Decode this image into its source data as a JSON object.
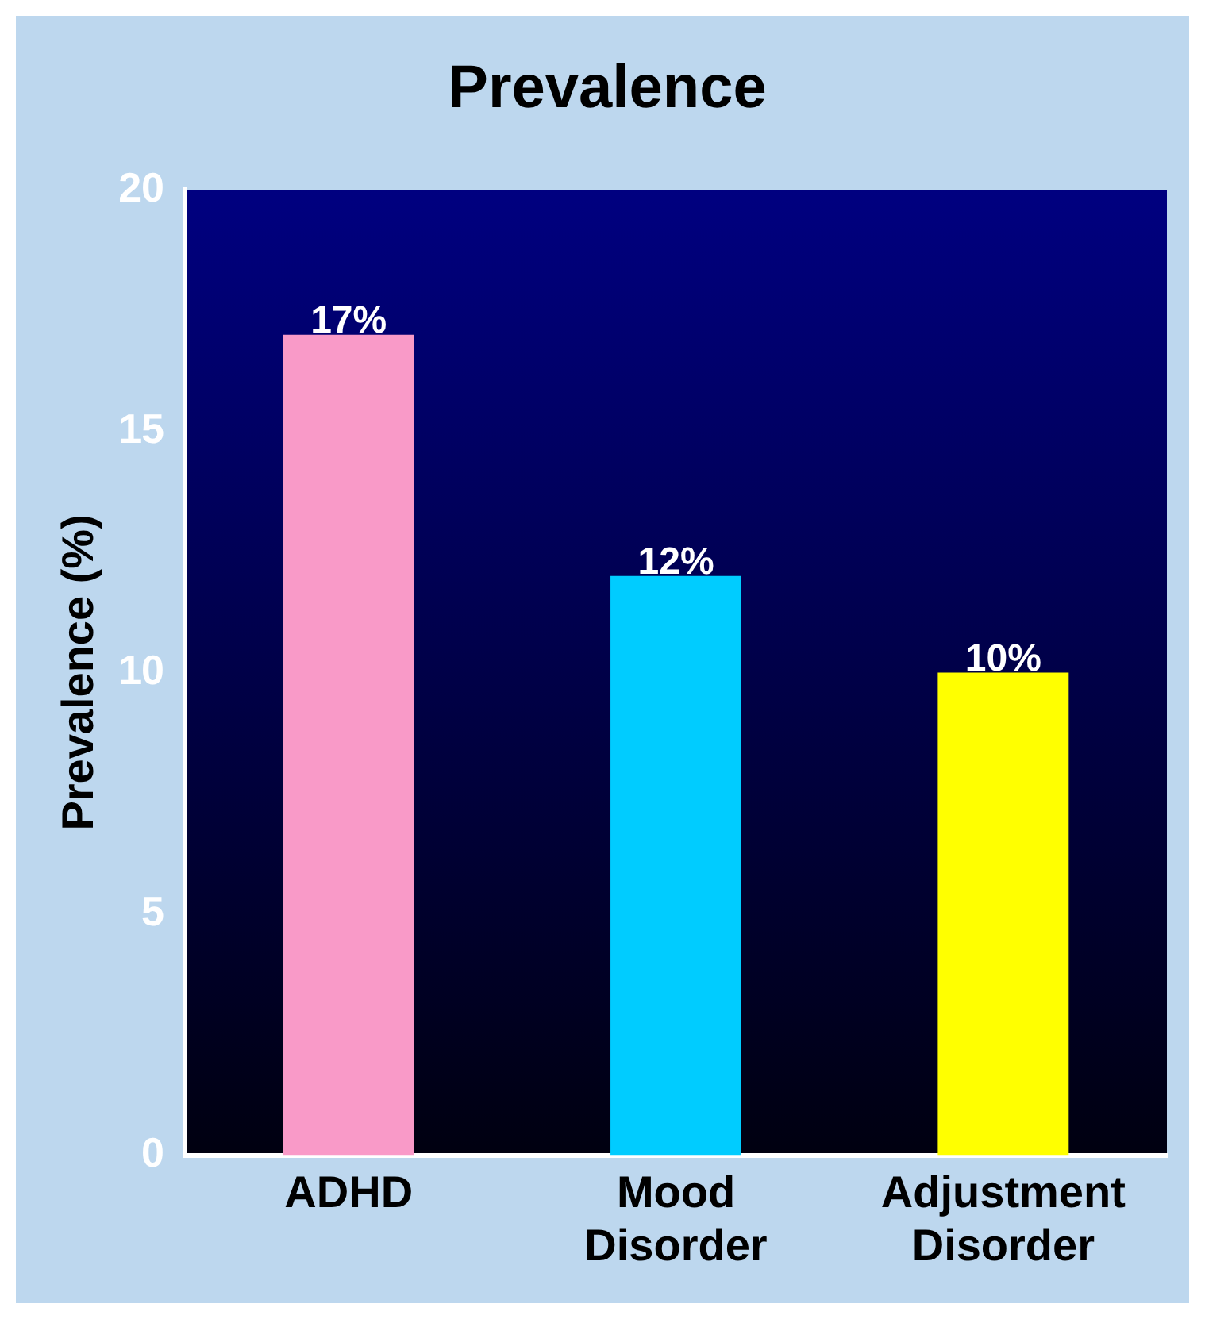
{
  "chart_data": {
    "type": "bar",
    "title": "Prevalence",
    "ylabel": "Prevalence (%)",
    "categories": [
      "ADHD",
      "Mood Disorder",
      "Adjustment Disorder"
    ],
    "values": [
      17,
      12,
      10
    ],
    "colors": [
      "#f99ac8",
      "#00ccff",
      "#ffff00"
    ],
    "value_labels": [
      "17%",
      "12%",
      "10%"
    ],
    "ylim": [
      0,
      20
    ],
    "yticks": [
      0,
      5,
      10,
      15,
      20
    ],
    "grid": false,
    "legend": false
  }
}
